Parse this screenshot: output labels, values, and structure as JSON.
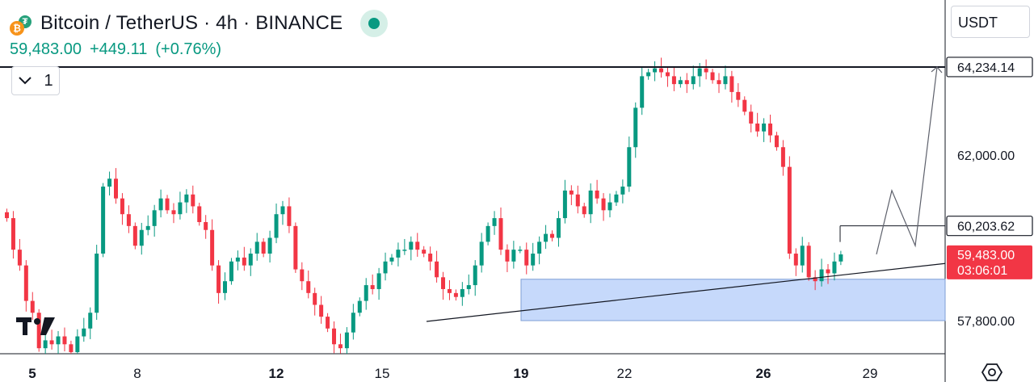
{
  "header": {
    "title": "Bitcoin / TetherUS · 4h · BINANCE",
    "price": "59,483.00",
    "change": "+449.11",
    "change_pct": "(+0.76%)",
    "coin_icon": "bitcoin-icon",
    "quote_icon": "tether-icon",
    "live_icon": "live-dot-icon",
    "accent_green": "#089981",
    "accent_red": "#f23645"
  },
  "controls": {
    "collapse_count": "1",
    "collapse_icon": "chevron-down-icon",
    "currency": "USDT",
    "settings_icon": "settings-icon"
  },
  "chart_data": {
    "type": "candlestick",
    "x_ticks": [
      "5",
      "8",
      "12",
      "15",
      "19",
      "22",
      "26",
      "29"
    ],
    "y_ticks": [
      "62,000.00",
      "57,800.00"
    ],
    "level_labels": [
      {
        "label": "64,234.14",
        "value": 64234.14
      },
      {
        "label": "60,203.62",
        "value": 60203.62
      }
    ],
    "last_price": {
      "label": "59,483.00",
      "countdown": "03:06:01",
      "value": 59483
    },
    "candle_closes": [
      60400,
      59600,
      59200,
      58300,
      58000,
      57100,
      57300,
      57200,
      57400,
      57200,
      57000,
      57400,
      57600,
      58000,
      59500,
      61200,
      61400,
      60900,
      60500,
      60200,
      59700,
      60100,
      60200,
      60600,
      60900,
      60600,
      60500,
      60800,
      61000,
      60700,
      60300,
      60100,
      59200,
      58500,
      58800,
      59300,
      59400,
      59200,
      59500,
      59800,
      59500,
      59900,
      60500,
      60700,
      60200,
      59100,
      58800,
      58500,
      58200,
      57900,
      57600,
      57200,
      57100,
      57500,
      58000,
      58300,
      58700,
      58600,
      59000,
      59300,
      59400,
      59600,
      59600,
      59800,
      59600,
      59500,
      59300,
      58900,
      58600,
      58500,
      58400,
      58600,
      58700,
      59200,
      59800,
      60200,
      60400,
      59600,
      59300,
      59600,
      59600,
      59200,
      59500,
      59800,
      60000,
      59900,
      60400,
      61100,
      61000,
      60700,
      60500,
      61100,
      60900,
      60600,
      60800,
      61000,
      61200,
      62200,
      63200,
      64000,
      64100,
      64200,
      64100,
      64000,
      63800,
      63900,
      63800,
      64000,
      64200,
      64100,
      63900,
      63800,
      64000,
      63600,
      63400,
      63100,
      62800,
      62600,
      62800,
      62500,
      62200,
      61700,
      59500,
      59200,
      59700,
      58900,
      58800,
      59100,
      59000,
      59300,
      59480
    ],
    "projection": [
      {
        "label": "",
        "value": 59483
      },
      {
        "label": "",
        "value": 61100
      },
      {
        "label": "",
        "value": 59700
      },
      {
        "label": "",
        "value": 64234
      }
    ],
    "demand_zone": {
      "from": 57800,
      "to": 58850
    },
    "trendline": {
      "from": 57780,
      "to": 59250
    }
  }
}
